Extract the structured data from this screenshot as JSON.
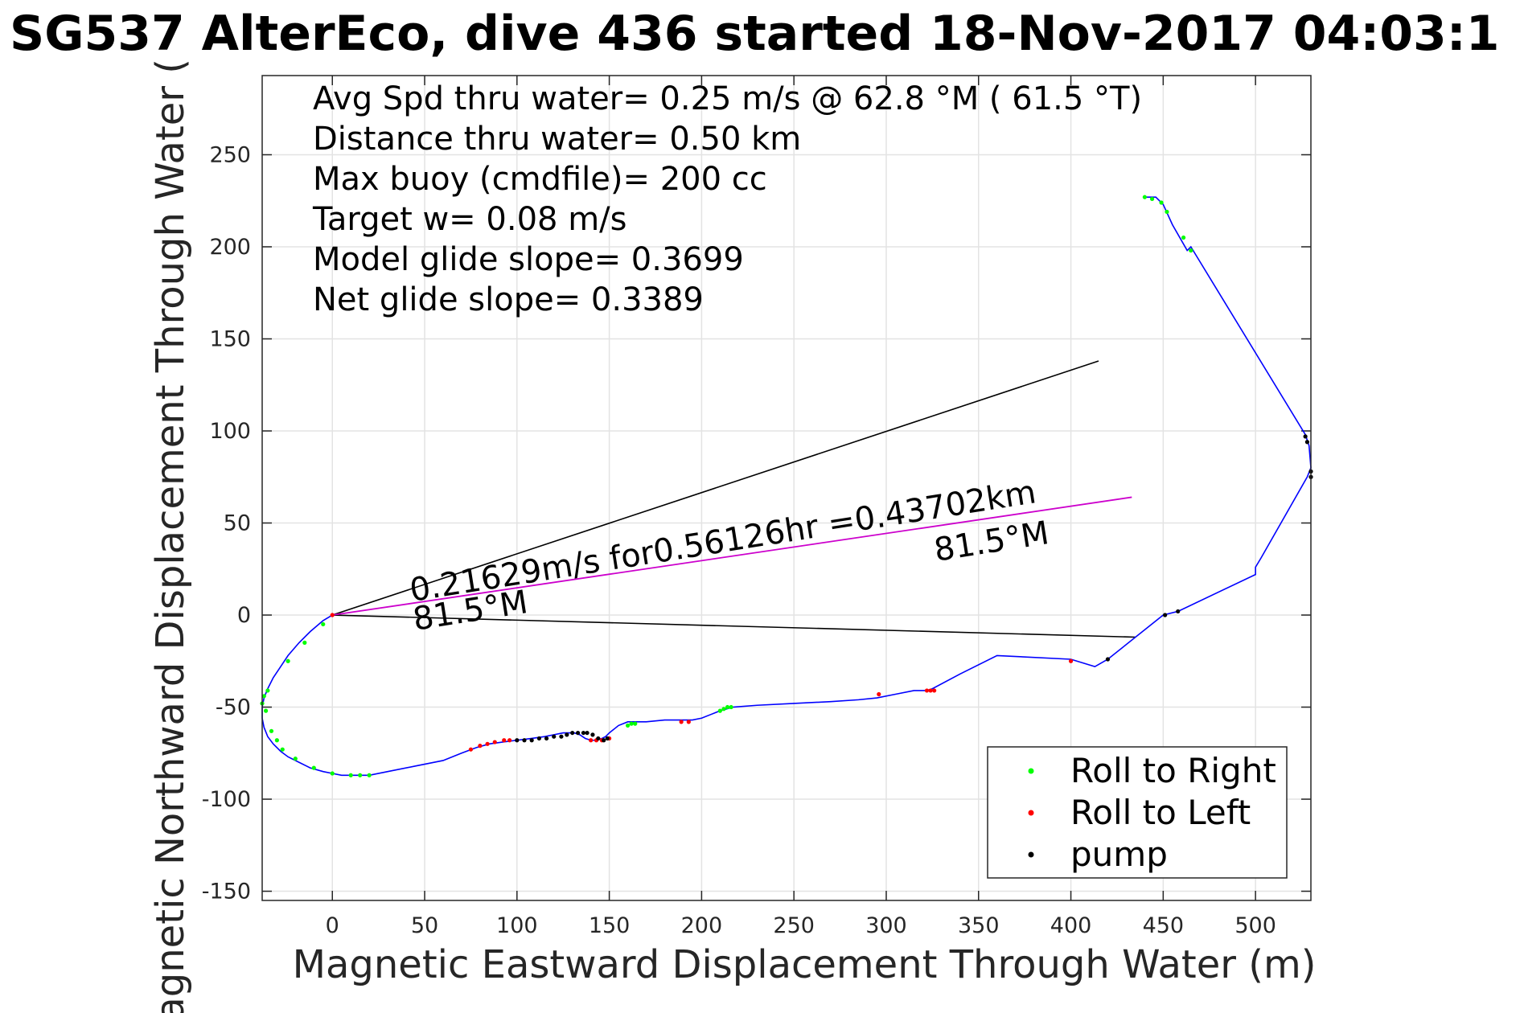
{
  "chart_data": {
    "type": "line",
    "title": "SG537 AlterEco, dive 436 started 18-Nov-2017 04:03:1",
    "xlabel": "Magnetic Eastward Displacement Through Water (m)",
    "ylabel": "Magnetic Northward Displacement Through Water (",
    "xlim": [
      -38,
      530
    ],
    "ylim": [
      -155,
      293
    ],
    "xticks": [
      0,
      50,
      100,
      150,
      200,
      250,
      300,
      350,
      400,
      450,
      500
    ],
    "yticks": [
      -150,
      -100,
      -50,
      0,
      50,
      100,
      150,
      200,
      250
    ],
    "grid": true,
    "info_lines": [
      "Avg Spd thru water=  0.25 m/s @  62.8 °M ( 61.5 °T)",
      "Distance thru water=  0.50 km",
      "Max buoy (cmdfile)= 200 cc",
      "Target w= 0.08 m/s",
      "Model glide slope= 0.3699",
      "Net glide slope= 0.3389"
    ],
    "annotations": {
      "speed_text": "0.21629m/s for0.56126hr =0.43702km",
      "heading_text_1": "81.5°M",
      "heading_text_2": "81.5°M"
    },
    "legend": {
      "position": "bottom-right",
      "entries": [
        {
          "label": "Roll to Right",
          "color": "#00ff00"
        },
        {
          "label": "Roll to Left",
          "color": "#ff0000"
        },
        {
          "label": "pump",
          "color": "#000000"
        }
      ]
    },
    "colors": {
      "track": "#0000ff",
      "current": "#cc00cc",
      "bearing_lines": "#000000"
    },
    "series": [
      {
        "name": "track",
        "x": [
          0,
          -5,
          -12,
          -18,
          -24,
          -28,
          -32,
          -35,
          -37,
          -38,
          -38,
          -37,
          -35,
          -32,
          -28,
          -24,
          -18,
          -12,
          -5,
          0,
          5,
          10,
          15,
          20,
          30,
          45,
          60,
          70,
          78,
          85,
          92,
          100,
          108,
          115,
          120,
          125,
          128,
          131,
          134,
          137,
          140,
          143,
          146,
          148,
          150,
          155,
          160,
          170,
          180,
          190,
          195,
          200,
          205,
          210,
          217,
          230,
          250,
          270,
          285,
          295,
          305,
          315,
          322,
          325,
          340,
          360,
          400,
          413,
          420,
          450,
          458,
          500,
          500,
          503,
          528,
          530,
          529,
          527,
          465,
          463,
          455,
          450,
          446,
          440
        ],
        "y": [
          0,
          -3,
          -9,
          -15,
          -22,
          -28,
          -34,
          -40,
          -45,
          -50,
          -56,
          -61,
          -66,
          -70,
          -74,
          -77,
          -80,
          -83,
          -85,
          -86,
          -87,
          -87,
          -87,
          -87,
          -85,
          -82,
          -79,
          -75,
          -72,
          -70,
          -69,
          -68,
          -67,
          -66,
          -65,
          -64,
          -64,
          -64,
          -65,
          -67,
          -68,
          -68,
          -67,
          -66,
          -64,
          -60,
          -58,
          -58,
          -57,
          -57,
          -57,
          -56,
          -54,
          -52,
          -50,
          -49,
          -48,
          -47,
          -46,
          -45,
          -43,
          -41,
          -41,
          -40,
          -32,
          -22,
          -24,
          -28,
          -24,
          0,
          2,
          22,
          26,
          31,
          75,
          80,
          92,
          98,
          200,
          198,
          212,
          223,
          227,
          227
        ]
      },
      {
        "name": "Roll to Right",
        "x": [
          -38,
          -37,
          -36,
          -35,
          -33,
          -30,
          -27,
          -24,
          -20,
          -15,
          -10,
          -5,
          0,
          10,
          15,
          20,
          160,
          162,
          164,
          210,
          212,
          214,
          216,
          440,
          444,
          449,
          452,
          461,
          465
        ],
        "y": [
          -48,
          -44,
          -52,
          -41,
          -63,
          -68,
          -73,
          -25,
          -78,
          -15,
          -83,
          -5,
          -86,
          -87,
          -87,
          -87,
          -60,
          -59,
          -59,
          -52,
          -51,
          -50,
          -50,
          227,
          226,
          224,
          219,
          205,
          198
        ]
      },
      {
        "name": "Roll to Left",
        "x": [
          0,
          75,
          80,
          84,
          88,
          93,
          96,
          140,
          143,
          146,
          150,
          189,
          193,
          296,
          322,
          324,
          326,
          400
        ],
        "y": [
          0,
          -73,
          -71,
          -70,
          -69,
          -68,
          -68,
          -68,
          -68,
          -68,
          -67,
          -58,
          -58,
          -43,
          -41,
          -41,
          -41,
          -25
        ],
        "marks": [
          true,
          true,
          true,
          true,
          true,
          true,
          true,
          true,
          true,
          true,
          true,
          true,
          true,
          true,
          true,
          true,
          true,
          true
        ]
      },
      {
        "name": "pump",
        "x": [
          100,
          104,
          108,
          112,
          116,
          120,
          124,
          127,
          130,
          133,
          136,
          138,
          141,
          144,
          147,
          149,
          420,
          451,
          458,
          527,
          528,
          530,
          530
        ],
        "y": [
          -68,
          -68,
          -68,
          -67,
          -67,
          -66,
          -66,
          -65,
          -64,
          -64,
          -64,
          -64,
          -65,
          -67,
          -68,
          -67,
          -24,
          0,
          2,
          97,
          94,
          78,
          75
        ]
      }
    ],
    "bearing_lines": [
      {
        "x": [
          0,
          415
        ],
        "y": [
          0,
          138
        ]
      },
      {
        "x": [
          0,
          435
        ],
        "y": [
          0,
          -12
        ]
      }
    ],
    "current_line": {
      "x": [
        0,
        433
      ],
      "y": [
        0,
        64
      ]
    }
  }
}
